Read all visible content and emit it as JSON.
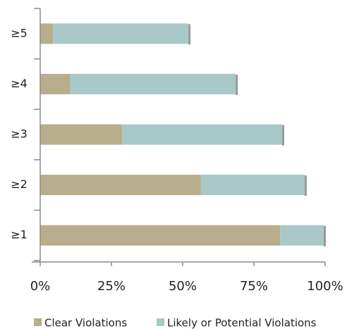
{
  "chart_data": {
    "type": "stacked-barh",
    "categories": [
      "≥5",
      "≥4",
      "≥3",
      "≥2",
      "≥1"
    ],
    "series": [
      {
        "name": "Clear Violations",
        "color": "#b6ae8c",
        "values": [
          4.5,
          10.4,
          28.7,
          56.4,
          84.2
        ]
      },
      {
        "name": "Likely or Potential Violations",
        "color": "#a9c9c8",
        "values": [
          47.5,
          58.2,
          56.2,
          36.4,
          15.3
        ]
      }
    ],
    "xlim": [
      0,
      100
    ],
    "xticks": [
      {
        "value": 0,
        "label": "0%"
      },
      {
        "value": 25,
        "label": "25%"
      },
      {
        "value": 50,
        "label": "50%"
      },
      {
        "value": 75,
        "label": "75%"
      },
      {
        "value": 100,
        "label": "100%"
      }
    ],
    "grid": false,
    "legend": "bottom"
  }
}
